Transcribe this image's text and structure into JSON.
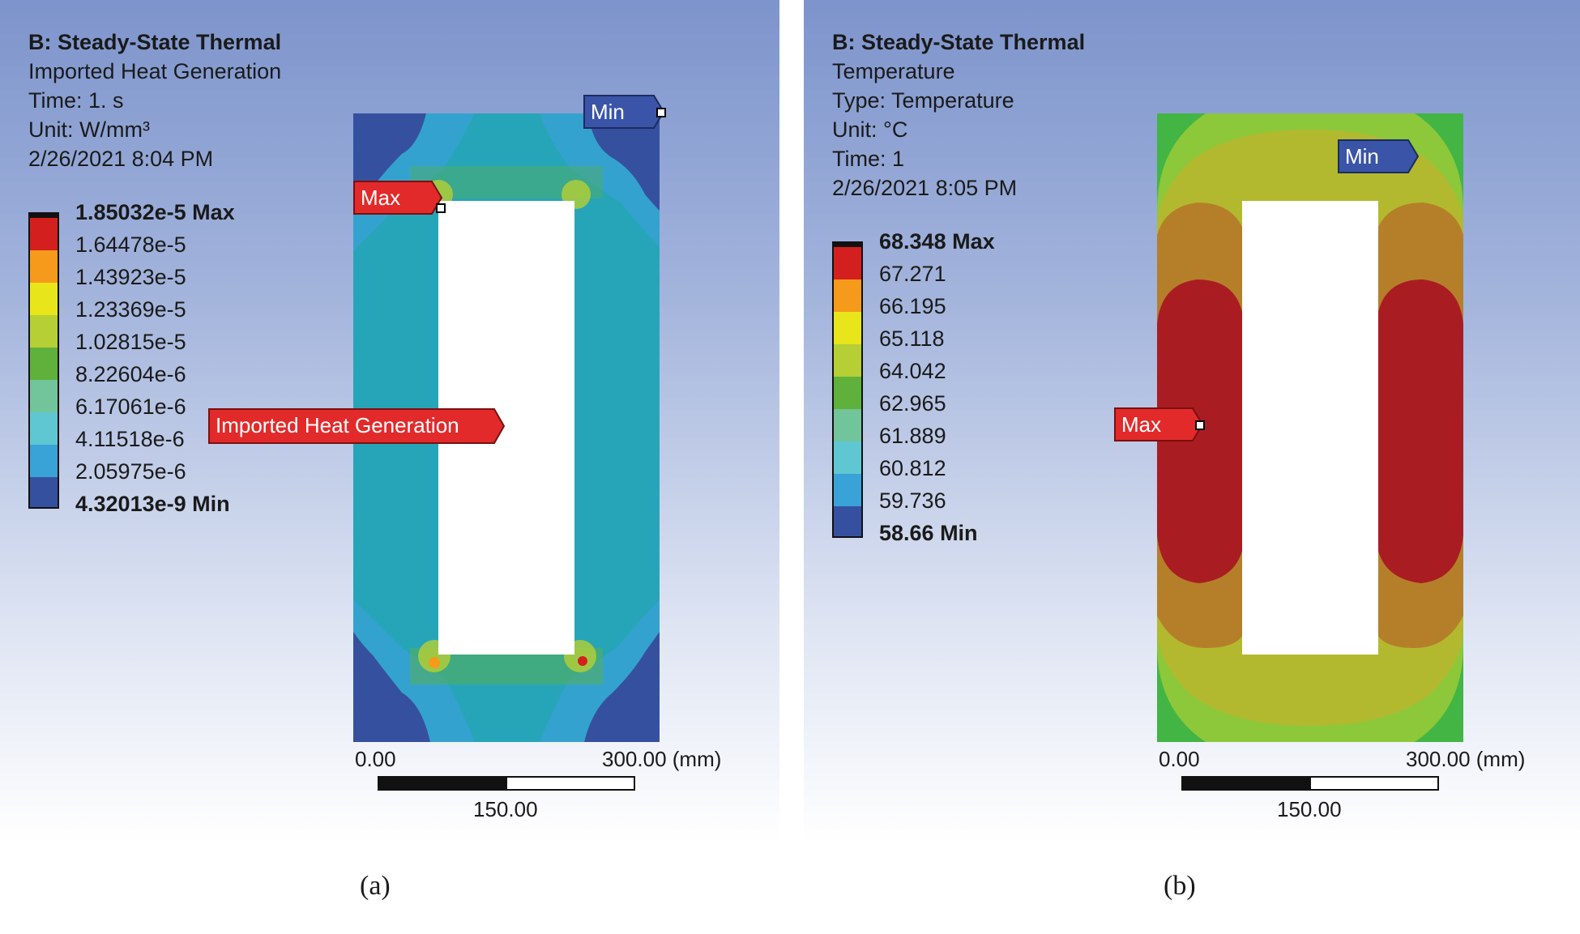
{
  "panels": [
    {
      "id": "a",
      "header": [
        "B: Steady-State Thermal",
        "Imported Heat Generation",
        "Time: 1. s",
        "Unit: W/mm³",
        "2/26/2021 8:04 PM"
      ],
      "legend": {
        "labels": [
          "1.85032e-5 Max",
          "1.64478e-5",
          "1.43923e-5",
          "1.23369e-5",
          "1.02815e-5",
          "8.22604e-6",
          "6.17061e-6",
          "4.11518e-6",
          "2.05975e-6",
          "4.32013e-9 Min"
        ],
        "colors": [
          "#d41f1f",
          "#f59a1a",
          "#e8e61a",
          "#b5cf35",
          "#5fb13c",
          "#72c49a",
          "#5fc7d2",
          "#39a2d6",
          "#3650a0"
        ]
      },
      "probes": {
        "min": "Min",
        "max": "Max",
        "result": "Imported Heat Generation"
      },
      "scale": {
        "start": "0.00",
        "end": "300.00 (mm)",
        "mid": "150.00"
      },
      "caption": "(a)"
    },
    {
      "id": "b",
      "header": [
        "B: Steady-State Thermal",
        "Temperature",
        "Type: Temperature",
        "Unit: °C",
        "Time: 1",
        "2/26/2021 8:05 PM"
      ],
      "legend": {
        "labels": [
          "68.348 Max",
          "67.271",
          "66.195",
          "65.118",
          "64.042",
          "62.965",
          "61.889",
          "60.812",
          "59.736",
          "58.66 Min"
        ],
        "colors": [
          "#d41f1f",
          "#f59a1a",
          "#e8e61a",
          "#b5cf35",
          "#5fb13c",
          "#72c49a",
          "#5fc7d2",
          "#39a2d6",
          "#3650a0"
        ]
      },
      "probes": {
        "min": "Min",
        "max": "Max"
      },
      "scale": {
        "start": "0.00",
        "end": "300.00 (mm)",
        "mid": "150.00"
      },
      "caption": "(b)"
    }
  ]
}
